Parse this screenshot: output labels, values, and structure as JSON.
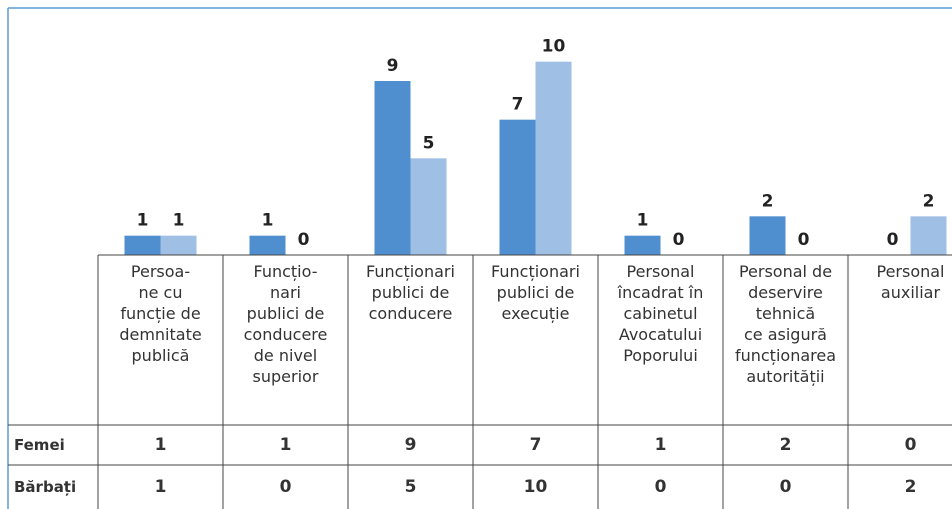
{
  "chart_data": {
    "type": "bar",
    "categories": [
      "Persoa-\nne cu\nfuncție de\ndemnitate\npublică",
      "Funcțio-\nnari\npublici de\nconducere\nde nivel\nsuperior",
      "Funcționari\npublici de\nconducere",
      "Funcționari\npublici de\nexecuție",
      "Personal\nîncadrat în\ncabinetul\nAvocatului\nPoporului",
      "Personal de\ndeservire\ntehnică\nce asigură\nfuncționarea\nautorității",
      "Personal\nauxiliar"
    ],
    "series": [
      {
        "name": "Femei",
        "color": "#4f8fcf",
        "values": [
          1,
          1,
          9,
          7,
          1,
          2,
          0
        ]
      },
      {
        "name": "Bărbați",
        "color": "#9fbfe5",
        "values": [
          1,
          0,
          5,
          10,
          0,
          0,
          2
        ]
      }
    ],
    "ylim": [
      0,
      12
    ]
  }
}
